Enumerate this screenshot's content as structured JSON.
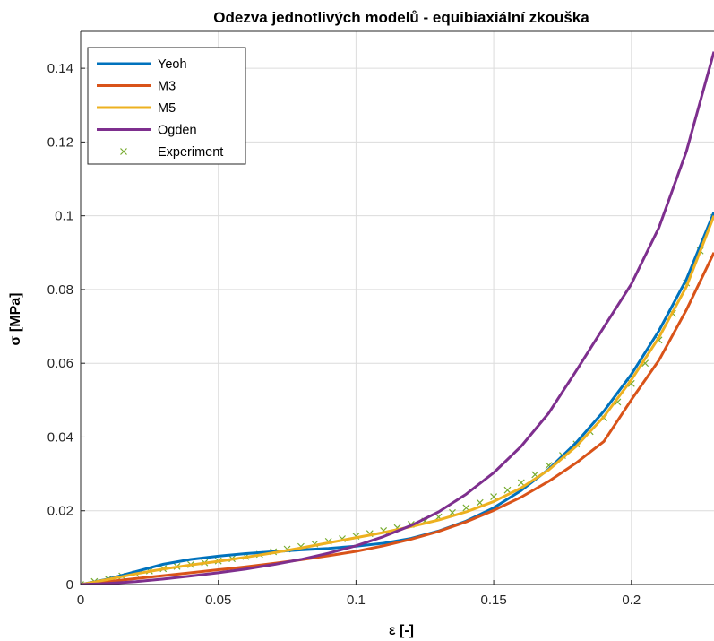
{
  "chart_data": {
    "type": "line",
    "title": "Odezva jednotlivých modelů - equibiaxiální zkouška",
    "xlabel": "ε [-]",
    "ylabel": "σ [MPa]",
    "xlim": [
      0,
      0.23
    ],
    "ylim": [
      0,
      0.15
    ],
    "grid": true,
    "legend_placement": "top-left",
    "x_ticks": [
      "0",
      "0.05",
      "0.1",
      "0.15",
      "0.2"
    ],
    "x_tick_values": [
      0,
      0.05,
      0.1,
      0.15,
      0.2
    ],
    "y_ticks": [
      "0",
      "0.02",
      "0.04",
      "0.06",
      "0.08",
      "0.1",
      "0.12",
      "0.14"
    ],
    "y_tick_values": [
      0,
      0.02,
      0.04,
      0.06,
      0.08,
      0.1,
      0.12,
      0.14
    ],
    "series": [
      {
        "name": "Yeoh",
        "color": "#0072BD",
        "x": [
          0,
          0.01,
          0.02,
          0.03,
          0.04,
          0.05,
          0.06,
          0.07,
          0.08,
          0.09,
          0.1,
          0.11,
          0.12,
          0.13,
          0.14,
          0.15,
          0.16,
          0.17,
          0.18,
          0.19,
          0.2,
          0.21,
          0.22,
          0.23
        ],
        "y": [
          0,
          0.0015,
          0.0035,
          0.0055,
          0.0068,
          0.0077,
          0.0084,
          0.0089,
          0.0094,
          0.0098,
          0.0104,
          0.0112,
          0.0125,
          0.0145,
          0.0172,
          0.0208,
          0.0255,
          0.0313,
          0.0385,
          0.047,
          0.057,
          0.0688,
          0.0828,
          0.101
        ]
      },
      {
        "name": "M3",
        "color": "#D95319",
        "x": [
          0,
          0.01,
          0.02,
          0.03,
          0.04,
          0.05,
          0.06,
          0.07,
          0.08,
          0.09,
          0.1,
          0.11,
          0.12,
          0.13,
          0.14,
          0.15,
          0.16,
          0.17,
          0.18,
          0.19,
          0.2,
          0.21,
          0.22,
          0.23
        ],
        "y": [
          0,
          0.0008,
          0.0016,
          0.0024,
          0.0032,
          0.004,
          0.0048,
          0.0057,
          0.0067,
          0.0078,
          0.009,
          0.0105,
          0.0123,
          0.0144,
          0.017,
          0.0201,
          0.0237,
          0.028,
          0.033,
          0.0388,
          0.0501,
          0.0608,
          0.0745,
          0.09
        ]
      },
      {
        "name": "M5",
        "color": "#EDB120",
        "x": [
          0,
          0.01,
          0.02,
          0.03,
          0.04,
          0.05,
          0.06,
          0.07,
          0.08,
          0.09,
          0.1,
          0.11,
          0.12,
          0.13,
          0.14,
          0.15,
          0.16,
          0.17,
          0.18,
          0.19,
          0.2,
          0.21,
          0.22,
          0.23
        ],
        "y": [
          0,
          0.0014,
          0.0029,
          0.0042,
          0.0053,
          0.0063,
          0.0074,
          0.0086,
          0.0099,
          0.0113,
          0.0127,
          0.0141,
          0.0157,
          0.0175,
          0.0197,
          0.0225,
          0.0262,
          0.0311,
          0.0375,
          0.0455,
          0.0555,
          0.067,
          0.0808,
          0.1
        ]
      },
      {
        "name": "Ogden",
        "color": "#7E2F8E",
        "x": [
          0,
          0.01,
          0.02,
          0.03,
          0.04,
          0.05,
          0.06,
          0.07,
          0.08,
          0.09,
          0.1,
          0.11,
          0.12,
          0.13,
          0.14,
          0.15,
          0.16,
          0.17,
          0.18,
          0.19,
          0.2,
          0.21,
          0.22,
          0.23
        ],
        "y": [
          0,
          0.0003,
          0.0008,
          0.0015,
          0.0023,
          0.0032,
          0.0042,
          0.0054,
          0.0068,
          0.0085,
          0.0105,
          0.013,
          0.016,
          0.0197,
          0.0245,
          0.0303,
          0.0375,
          0.0465,
          0.058,
          0.0698,
          0.0815,
          0.0968,
          0.1175,
          0.1445
        ]
      }
    ],
    "experiment": {
      "name": "Experiment",
      "color": "#77AC30",
      "marker": "x",
      "x": [
        0,
        0.005,
        0.01,
        0.015,
        0.02,
        0.025,
        0.03,
        0.035,
        0.04,
        0.045,
        0.05,
        0.055,
        0.06,
        0.065,
        0.07,
        0.075,
        0.08,
        0.085,
        0.09,
        0.095,
        0.1,
        0.105,
        0.11,
        0.115,
        0.12,
        0.125,
        0.13,
        0.135,
        0.14,
        0.145,
        0.15,
        0.155,
        0.16,
        0.165,
        0.17,
        0.175,
        0.18,
        0.185,
        0.19,
        0.195,
        0.2,
        0.205,
        0.21,
        0.215,
        0.22,
        0.225,
        0.23
      ],
      "y": [
        0,
        0.0008,
        0.0015,
        0.0023,
        0.003,
        0.0037,
        0.0043,
        0.0049,
        0.0054,
        0.0059,
        0.0064,
        0.007,
        0.0076,
        0.0082,
        0.0089,
        0.0096,
        0.0103,
        0.011,
        0.0117,
        0.0124,
        0.0131,
        0.0138,
        0.0146,
        0.0154,
        0.0163,
        0.0172,
        0.0183,
        0.0195,
        0.0208,
        0.0222,
        0.0238,
        0.0256,
        0.0276,
        0.0298,
        0.0323,
        0.035,
        0.0381,
        0.0415,
        0.0452,
        0.0495,
        0.0545,
        0.06,
        0.0663,
        0.0735,
        0.0818,
        0.0905,
        0.0995
      ]
    }
  }
}
